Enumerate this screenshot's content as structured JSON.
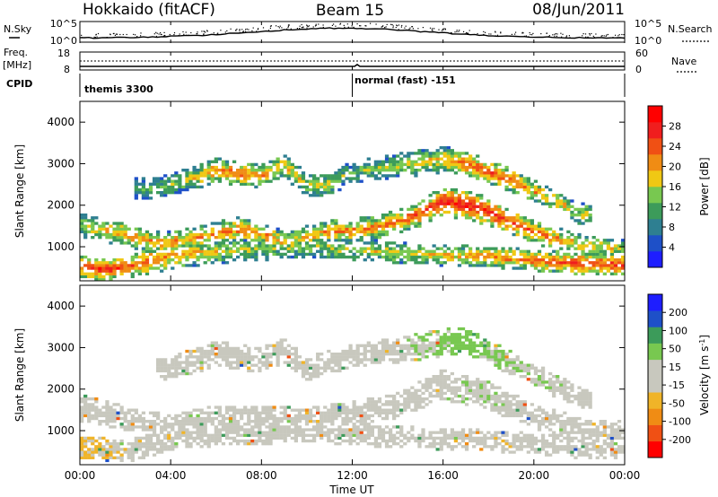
{
  "header": {
    "radar": "Hokkaido (fitACF)",
    "beam": "Beam 15",
    "date": "08/Jun/2011"
  },
  "top_strip": {
    "nsky_label": "N.Sky",
    "nsearch_label": "N.Search",
    "noise_ticks": [
      "10^5",
      "10^0"
    ],
    "freq_label_1": "Freq.",
    "freq_label_2": "[MHz]",
    "freq_ticks": [
      "18",
      "8"
    ],
    "nave_label": "Nave",
    "nave_ticks": [
      "60",
      "0"
    ],
    "cpid_label": "CPID",
    "cpid_segments": [
      {
        "label": "themis 3300",
        "start_hour": 0
      },
      {
        "label": "normal (fast) -151",
        "start_hour": 12
      }
    ]
  },
  "x_axis": {
    "title": "Time UT",
    "ticks": [
      "00:00",
      "04:00",
      "08:00",
      "12:00",
      "16:00",
      "20:00",
      "00:00"
    ],
    "tick_hours": [
      0,
      4,
      8,
      12,
      16,
      20,
      24
    ]
  },
  "colors": {
    "power_scale": [
      "#1e1eff",
      "#1e50c8",
      "#2e7f91",
      "#3c9b5a",
      "#78c850",
      "#f0c814",
      "#f08c14",
      "#f05014",
      "#f01e1e",
      "#ff0000"
    ],
    "velocity_scale": [
      "#ff0000",
      "#f05014",
      "#f08c14",
      "#f0b428",
      "#c8c8be",
      "#c8c8be",
      "#78c850",
      "#3c9b5a",
      "#1e50c8",
      "#1e1eff"
    ],
    "ground_scatter": "#c8c8be"
  },
  "chart_data": [
    {
      "type": "heatmap",
      "panel": "power",
      "ylabel": "Slant Range [km]",
      "yticks": [
        "1000",
        "2000",
        "3000",
        "4000"
      ],
      "ylim": [
        180,
        4500
      ],
      "xlim_hours": [
        0,
        24
      ],
      "colorbar": {
        "label": "Power [dB]",
        "ticks": [
          "4",
          "8",
          "12",
          "16",
          "20",
          "24",
          "28"
        ],
        "range": [
          0,
          30
        ]
      },
      "bands": [
        {
          "name": "low",
          "points": [
            [
              0,
              520,
              250,
              22
            ],
            [
              1,
              450,
              220,
              26
            ],
            [
              2,
              500,
              230,
              24
            ],
            [
              3,
              650,
              260,
              22
            ],
            [
              4,
              780,
              280,
              20
            ],
            [
              5,
              850,
              280,
              18
            ],
            [
              6,
              900,
              260,
              16
            ],
            [
              8,
              950,
              240,
              14
            ],
            [
              10,
              1000,
              240,
              14
            ],
            [
              12,
              950,
              230,
              15
            ],
            [
              14,
              850,
              230,
              16
            ],
            [
              16,
              800,
              220,
              18
            ],
            [
              18,
              760,
              220,
              20
            ],
            [
              20,
              680,
              220,
              22
            ],
            [
              22,
              600,
              230,
              24
            ],
            [
              24,
              560,
              230,
              24
            ]
          ]
        },
        {
          "name": "middle",
          "points": [
            [
              0,
              1550,
              260,
              14
            ],
            [
              1,
              1400,
              240,
              18
            ],
            [
              2,
              1300,
              240,
              20
            ],
            [
              3,
              1150,
              240,
              20
            ],
            [
              4,
              1100,
              230,
              20
            ],
            [
              5,
              1200,
              240,
              19
            ],
            [
              6,
              1320,
              240,
              20
            ],
            [
              7,
              1420,
              250,
              22
            ],
            [
              8,
              1320,
              240,
              21
            ],
            [
              9,
              1100,
              230,
              18
            ],
            [
              10,
              1250,
              240,
              18
            ],
            [
              11,
              1380,
              240,
              20
            ],
            [
              12,
              1400,
              240,
              20
            ],
            [
              13,
              1450,
              250,
              21
            ],
            [
              14,
              1600,
              260,
              22
            ],
            [
              15,
              1800,
              260,
              24
            ],
            [
              16,
              2100,
              300,
              26
            ],
            [
              17,
              2000,
              320,
              26
            ],
            [
              18,
              1850,
              300,
              26
            ],
            [
              19,
              1600,
              260,
              24
            ],
            [
              20,
              1350,
              240,
              22
            ],
            [
              21,
              1200,
              230,
              20
            ],
            [
              22,
              1050,
              230,
              18
            ],
            [
              23,
              980,
              220,
              17
            ],
            [
              24,
              950,
              220,
              16
            ]
          ]
        },
        {
          "name": "upper",
          "points": [
            [
              3,
              2400,
              220,
              12
            ],
            [
              4,
              2500,
              220,
              13
            ],
            [
              5,
              2650,
              240,
              16
            ],
            [
              6,
              2850,
              260,
              20
            ],
            [
              7,
              2750,
              240,
              22
            ],
            [
              8,
              2700,
              240,
              20
            ],
            [
              9,
              2950,
              260,
              18
            ],
            [
              10,
              2500,
              240,
              16
            ],
            [
              11,
              2500,
              240,
              15
            ],
            [
              12,
              2800,
              220,
              12
            ],
            [
              16,
              3100,
              280,
              18
            ],
            [
              17,
              3000,
              280,
              22
            ],
            [
              18,
              2800,
              260,
              22
            ],
            [
              19,
              2600,
              240,
              22
            ],
            [
              20,
              2350,
              220,
              20
            ],
            [
              21,
              2100,
              220,
              18
            ],
            [
              22,
              1800,
              220,
              16
            ]
          ]
        }
      ]
    },
    {
      "type": "heatmap",
      "panel": "velocity",
      "ylabel": "Slant Range [km]",
      "yticks": [
        "1000",
        "2000",
        "3000",
        "4000"
      ],
      "ylim": [
        180,
        4500
      ],
      "xlim_hours": [
        0,
        24
      ],
      "colorbar": {
        "label": "Velocity [m s^-1]",
        "ticks": [
          "-200",
          "-100",
          "-50",
          "-15",
          "15",
          "50",
          "100",
          "200"
        ],
        "range": [
          -250,
          250
        ]
      },
      "bands": [
        {
          "name": "low",
          "points": [
            [
              0,
              600,
              250,
              -60
            ],
            [
              2,
              500,
              230,
              -40
            ],
            [
              4,
              800,
              260,
              0
            ],
            [
              6,
              900,
              240,
              0
            ],
            [
              10,
              1000,
              240,
              0
            ],
            [
              14,
              850,
              230,
              0
            ],
            [
              18,
              760,
              220,
              0
            ],
            [
              22,
              600,
              230,
              -20
            ],
            [
              24,
              560,
              230,
              -20
            ]
          ]
        },
        {
          "name": "middle",
          "points": [
            [
              0,
              1550,
              280,
              0
            ],
            [
              2,
              1300,
              250,
              0
            ],
            [
              4,
              1100,
              240,
              0
            ],
            [
              6,
              1320,
              260,
              0
            ],
            [
              8,
              1320,
              260,
              0
            ],
            [
              10,
              1250,
              260,
              0
            ],
            [
              12,
              1400,
              260,
              0
            ],
            [
              14,
              1600,
              280,
              0
            ],
            [
              16,
              2100,
              320,
              30
            ],
            [
              18,
              1850,
              300,
              40
            ],
            [
              20,
              1350,
              260,
              0
            ],
            [
              22,
              1050,
              240,
              0
            ],
            [
              24,
              950,
              230,
              0
            ]
          ]
        },
        {
          "name": "upper",
          "points": [
            [
              4,
              2500,
              240,
              0
            ],
            [
              6,
              2850,
              270,
              0
            ],
            [
              8,
              2700,
              260,
              0
            ],
            [
              9,
              2950,
              270,
              0
            ],
            [
              10,
              2500,
              260,
              0
            ],
            [
              12,
              2800,
              240,
              0
            ],
            [
              16,
              3100,
              300,
              60
            ],
            [
              17,
              3200,
              280,
              70
            ],
            [
              18,
              2900,
              260,
              60
            ],
            [
              20,
              2350,
              240,
              40
            ],
            [
              22,
              1800,
              240,
              20
            ]
          ]
        }
      ]
    }
  ]
}
